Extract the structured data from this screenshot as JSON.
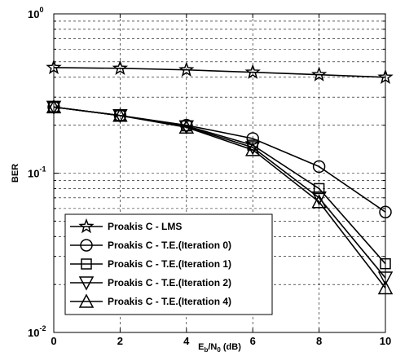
{
  "chart_data": {
    "type": "line",
    "title": "",
    "xlabel": "E_b/N_0 (dB)",
    "xlabel_parts": {
      "main": "E",
      "sub1": "b",
      "mid": "/N",
      "sub2": "0",
      "unit": " (dB)"
    },
    "ylabel": "BER",
    "xlim": [
      0,
      10
    ],
    "ylim": [
      0.01,
      1
    ],
    "y_scale": "log",
    "grid": true,
    "legend_position": "bottom-left",
    "x_ticks": [
      0,
      2,
      4,
      6,
      8,
      10
    ],
    "x_tick_labels": [
      "0",
      "2",
      "4",
      "6",
      "8",
      "10"
    ],
    "y_tick_labels": [
      {
        "value": 1,
        "base": "10",
        "exp": "0"
      },
      {
        "value": 0.1,
        "base": "10",
        "exp": "-1"
      },
      {
        "value": 0.01,
        "base": "10",
        "exp": "-2"
      }
    ],
    "x": [
      0,
      2,
      4,
      6,
      8,
      10
    ],
    "series": [
      {
        "name": "Proakis C - LMS",
        "marker": "star",
        "values": [
          0.46,
          0.455,
          0.445,
          0.43,
          0.415,
          0.4
        ]
      },
      {
        "name": "Proakis C - T.E.(Iteration 0)",
        "marker": "circle",
        "values": [
          0.26,
          0.23,
          0.2,
          0.165,
          0.11,
          0.057
        ]
      },
      {
        "name": "Proakis C - T.E.(Iteration 1)",
        "marker": "square",
        "values": [
          0.26,
          0.23,
          0.198,
          0.15,
          0.08,
          0.027
        ]
      },
      {
        "name": "Proakis C - T.E.(Iteration 2)",
        "marker": "triangle-down",
        "values": [
          0.26,
          0.23,
          0.196,
          0.145,
          0.07,
          0.022
        ]
      },
      {
        "name": "Proakis C - T.E.(Iteration 4)",
        "marker": "triangle-up",
        "values": [
          0.26,
          0.23,
          0.194,
          0.14,
          0.066,
          0.019
        ]
      }
    ]
  }
}
